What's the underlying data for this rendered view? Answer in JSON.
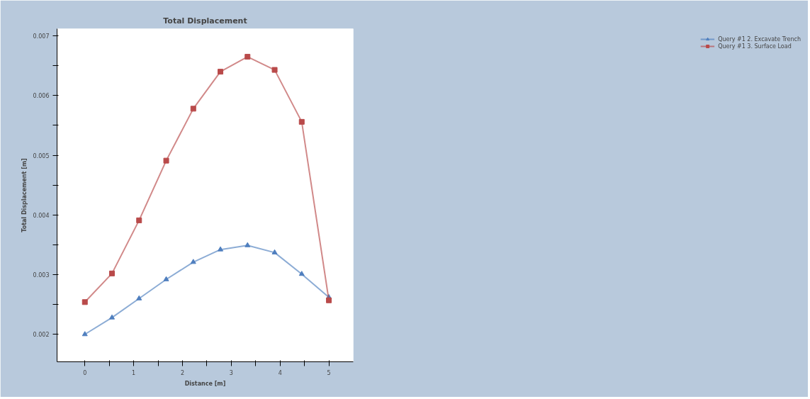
{
  "chart_data": {
    "type": "line",
    "title": "Total Displacement",
    "xlabel": "Distance [m]",
    "ylabel": "Total Displacement [m]",
    "x": [
      0,
      0.556,
      1.111,
      1.667,
      2.222,
      2.778,
      3.333,
      3.889,
      4.444,
      5
    ],
    "series": [
      {
        "name": "Query #1 2. Excavate Trench",
        "color": "#4f7fbf",
        "marker": "triangle",
        "values": [
          0.002,
          0.00228,
          0.0026,
          0.00292,
          0.00321,
          0.00342,
          0.00349,
          0.00337,
          0.00301,
          0.00262
        ]
      },
      {
        "name": "Query #1 3. Surface Load",
        "color": "#b94a4a",
        "marker": "square",
        "values": [
          0.00254,
          0.00302,
          0.00391,
          0.00491,
          0.00578,
          0.0064,
          0.00665,
          0.00643,
          0.00556,
          0.00257
        ]
      }
    ],
    "xlim": [
      -0.57,
      5.5
    ],
    "ylim": [
      0.00154,
      0.00712
    ],
    "xticks": [
      0,
      {
        "value": 0.5,
        "label": null
      },
      1,
      {
        "value": 1.5,
        "label": null
      },
      2,
      {
        "value": 2.5,
        "label": null
      },
      3,
      {
        "value": 3.5,
        "label": null
      },
      4,
      {
        "value": 4.5,
        "label": null
      },
      5
    ],
    "yticks": [
      0.002,
      {
        "value": 0.0025,
        "label": null
      },
      0.003,
      {
        "value": 0.0035,
        "label": null
      },
      0.004,
      {
        "value": 0.0045,
        "label": null
      },
      0.005,
      {
        "value": 0.0055,
        "label": null
      },
      0.006,
      {
        "value": 0.0065,
        "label": null
      },
      0.007
    ],
    "grid": false,
    "legend": "right",
    "line_style": "solid"
  }
}
